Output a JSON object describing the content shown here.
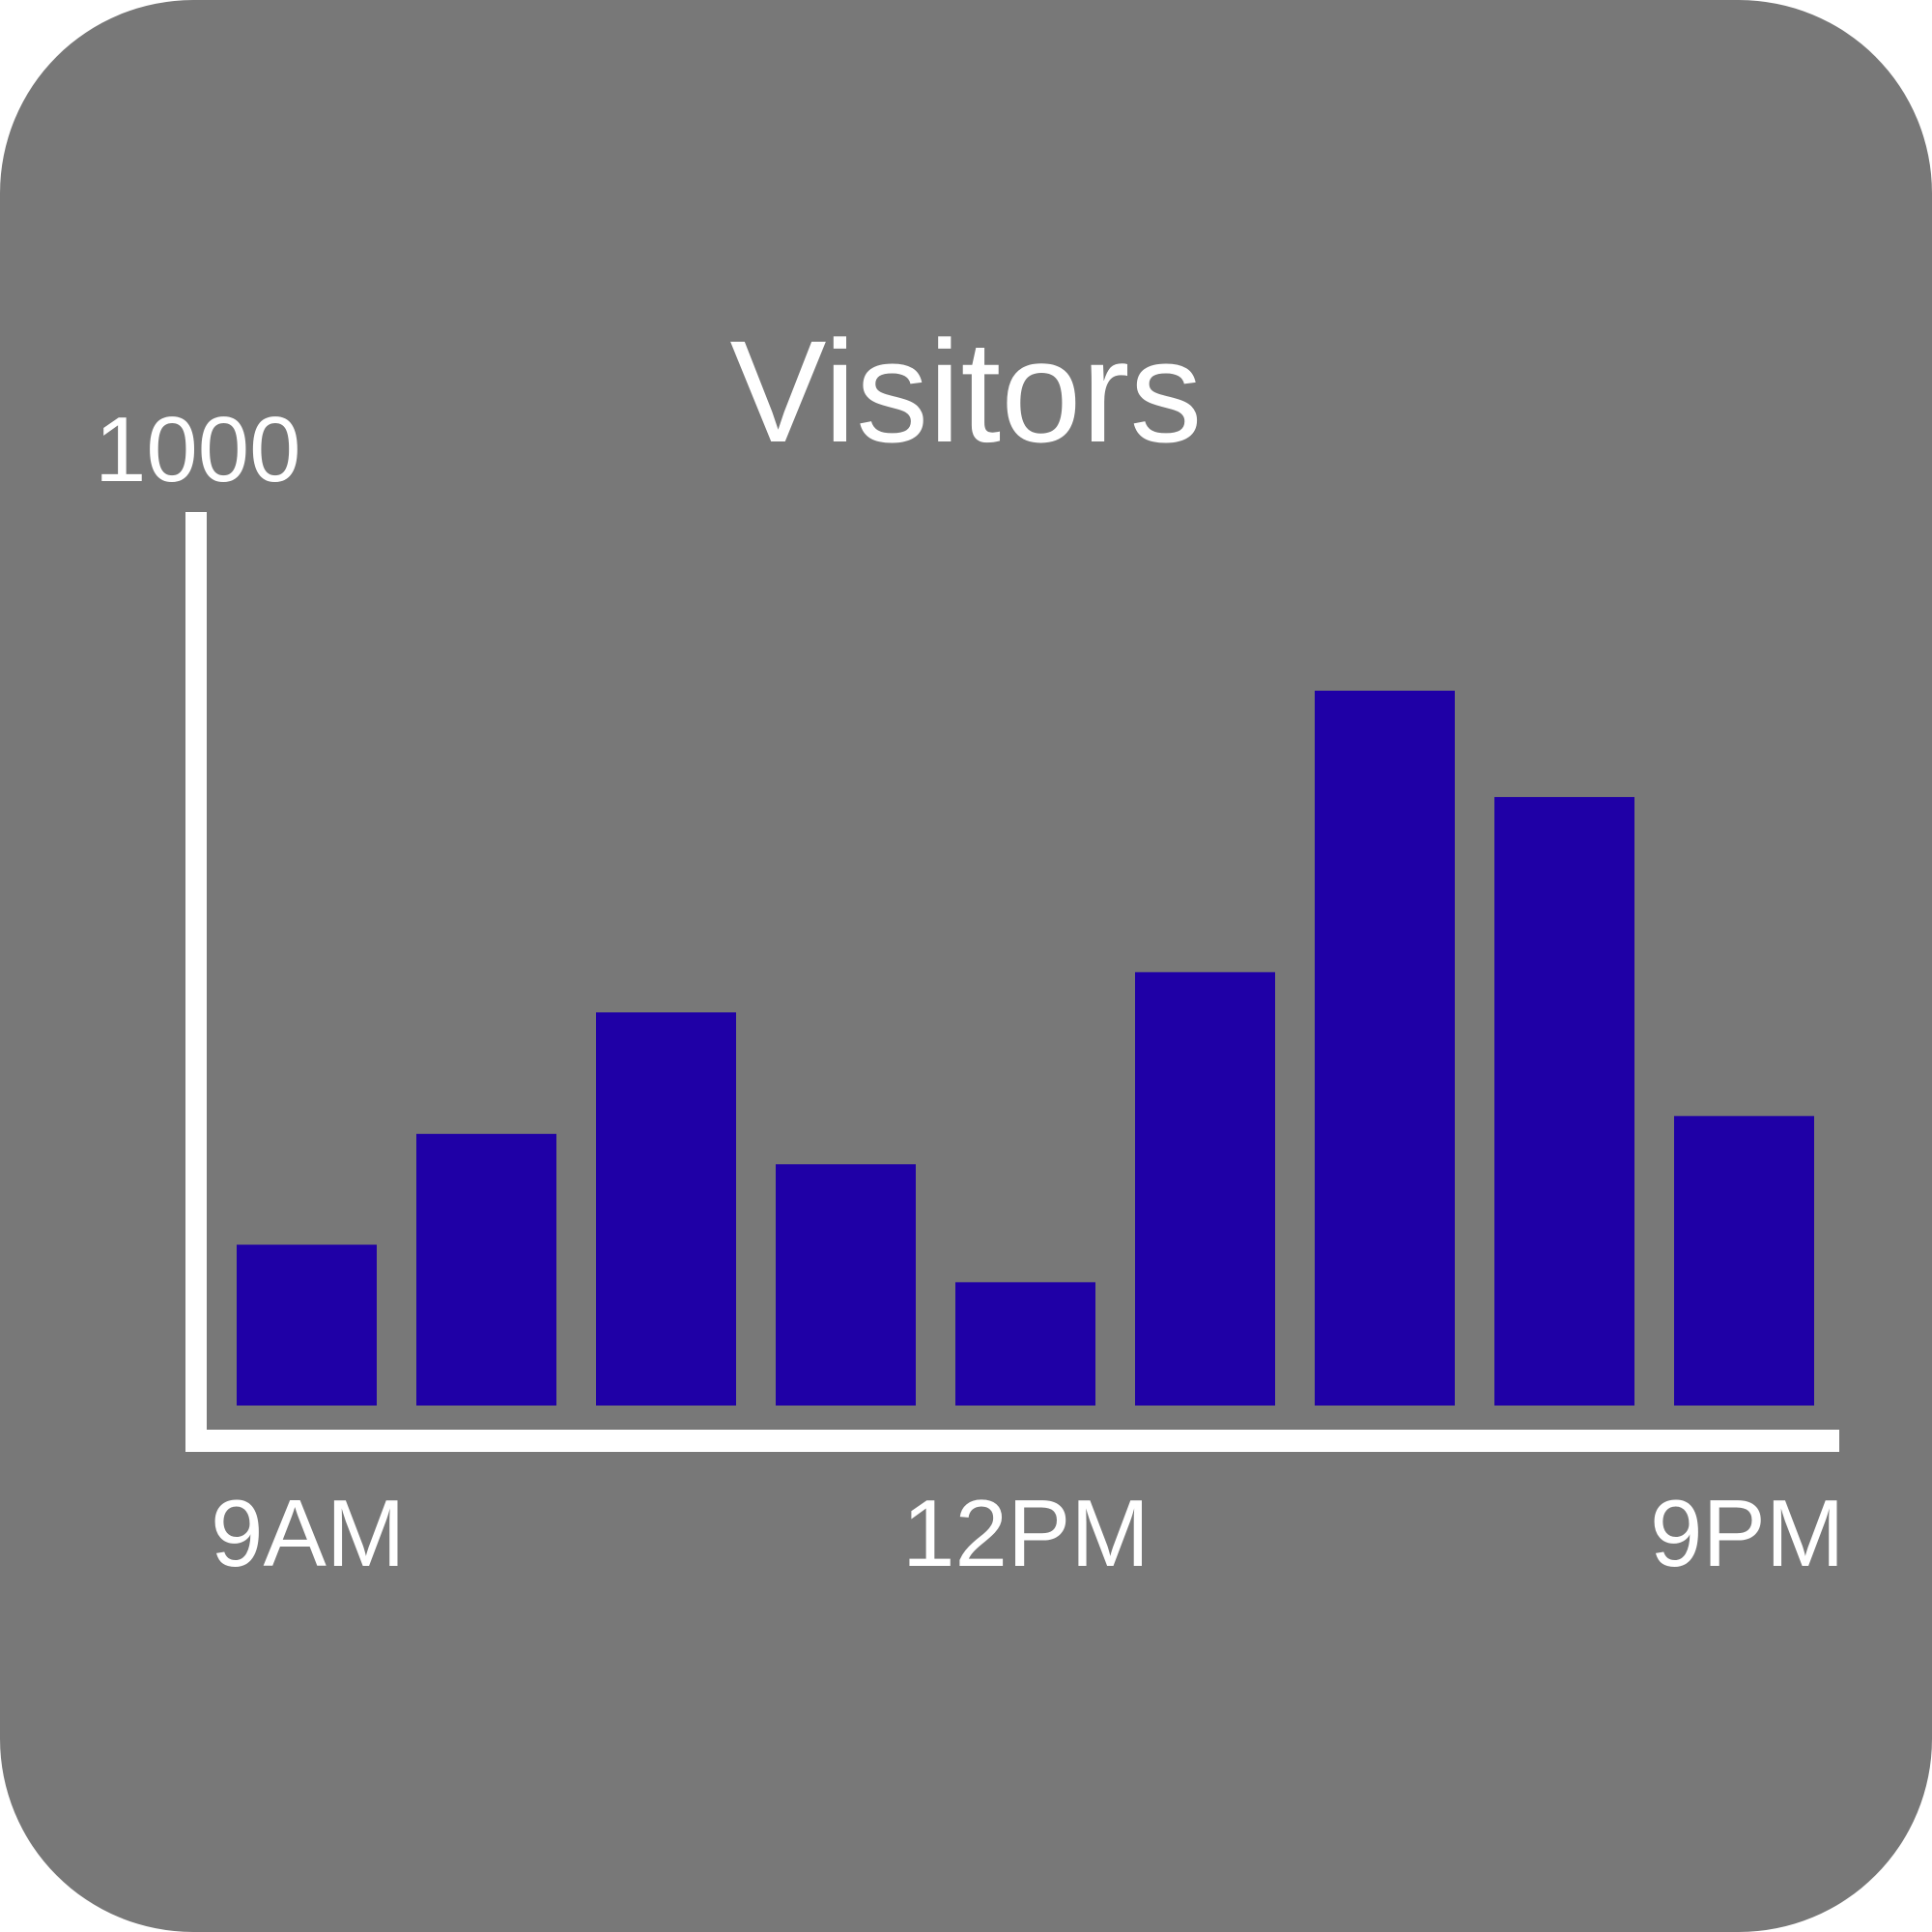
{
  "chart_data": {
    "type": "bar",
    "title": "Visitors",
    "y_max_label": "1000",
    "ylim": [
      0,
      1000
    ],
    "x_tick_labels": [
      "9AM",
      "12PM",
      "9PM"
    ],
    "values": [
      180,
      304,
      440,
      270,
      138,
      485,
      800,
      681,
      324
    ],
    "bar_color": "#1f00a6",
    "axis_color": "#ffffff",
    "background_color": "#787878",
    "grid": false,
    "legend": "none"
  }
}
